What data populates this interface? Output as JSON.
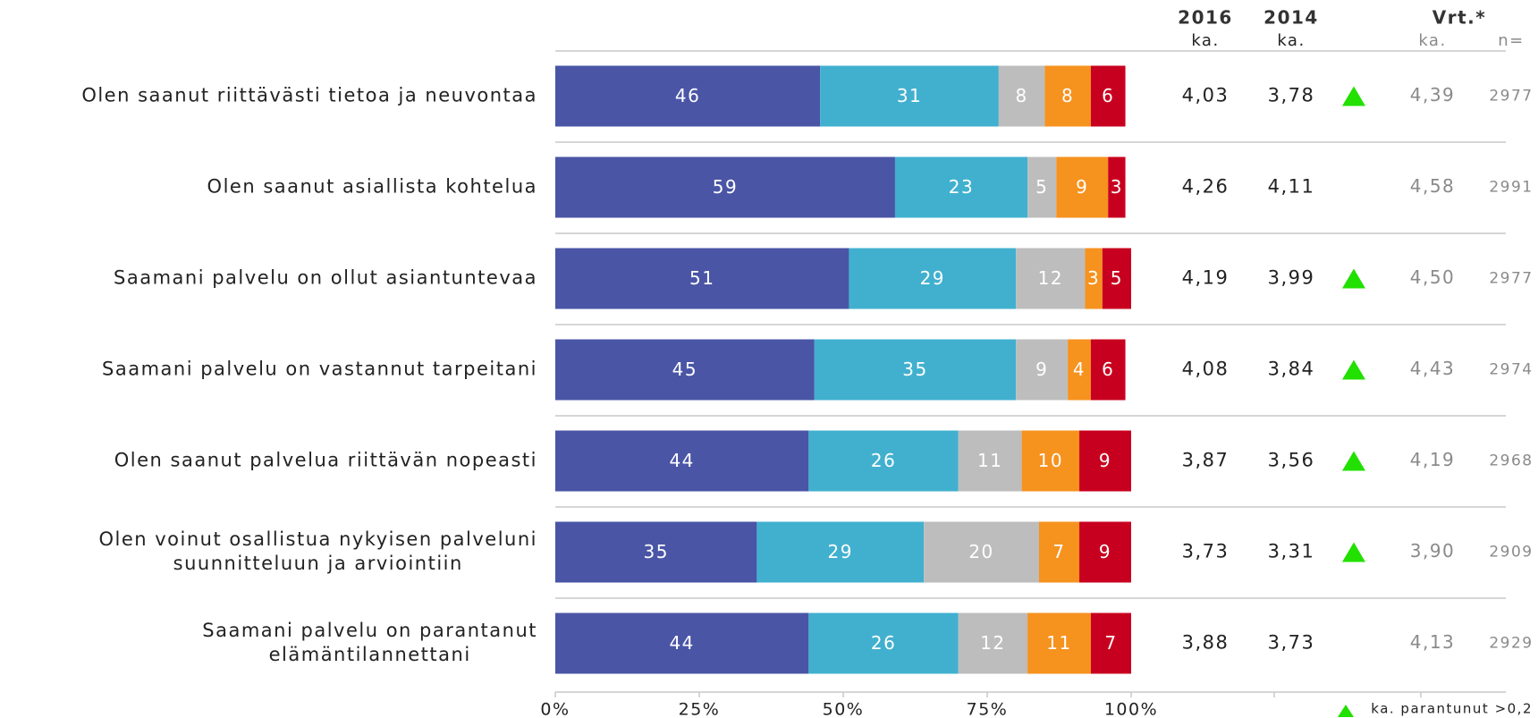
{
  "chart_data": {
    "type": "bar",
    "orientation": "horizontal",
    "stacked": true,
    "categories": [
      [
        "Olen saanut riittävästi tietoa ja neuvontaa"
      ],
      [
        "Olen saanut asiallista kohtelua"
      ],
      [
        "Saamani palvelu on ollut asiantuntevaa"
      ],
      [
        "Saamani palvelu on vastannut tarpeitani"
      ],
      [
        "Olen saanut palvelua riittävän nopeasti"
      ],
      [
        "Olen voinut osallistua nykyisen palveluni",
        "suunnitteluun ja arviointiin"
      ],
      [
        "Saamani palvelu on parantanut",
        "elämäntilannettani"
      ]
    ],
    "series": [
      {
        "color": "#4a55a6",
        "values": [
          46,
          59,
          51,
          45,
          44,
          35,
          44
        ]
      },
      {
        "color": "#41b0cf",
        "values": [
          31,
          23,
          29,
          35,
          26,
          29,
          26
        ]
      },
      {
        "color": "#bdbdbd",
        "values": [
          8,
          5,
          12,
          9,
          11,
          20,
          12
        ]
      },
      {
        "color": "#f6921e",
        "values": [
          8,
          9,
          3,
          4,
          10,
          7,
          11
        ]
      },
      {
        "color": "#c8001f",
        "values": [
          6,
          3,
          5,
          6,
          9,
          9,
          7
        ]
      }
    ],
    "xlim": [
      0,
      100
    ],
    "xticks": [
      {
        "value": 0,
        "label": "0%"
      },
      {
        "value": 25,
        "label": "25%"
      },
      {
        "value": 50,
        "label": "50%"
      },
      {
        "value": 75,
        "label": "75%"
      },
      {
        "value": 100,
        "label": "100%"
      }
    ],
    "table": {
      "headers": [
        [
          "2016",
          "ka."
        ],
        [
          "2014",
          "ka."
        ],
        [
          "Vrt.*",
          "ka."
        ],
        [
          "",
          "n="
        ]
      ],
      "rows": [
        [
          "4,03",
          "3,78",
          "4,39",
          "2977"
        ],
        [
          "4,26",
          "4,11",
          "4,58",
          "2991"
        ],
        [
          "4,19",
          "3,99",
          "4,50",
          "2977"
        ],
        [
          "4,08",
          "3,84",
          "4,43",
          "2974"
        ],
        [
          "3,87",
          "3,56",
          "4,19",
          "2968"
        ],
        [
          "3,73",
          "3,31",
          "3,90",
          "2909"
        ],
        [
          "3,88",
          "3,73",
          "4,13",
          "2929"
        ]
      ],
      "improved": [
        true,
        false,
        true,
        true,
        true,
        true,
        false
      ],
      "improved_color": "#22e000"
    },
    "legend_note": "ka. parantunut >0,2"
  }
}
